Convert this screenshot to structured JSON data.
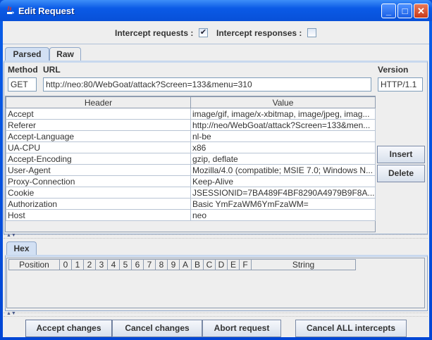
{
  "window": {
    "title": "Edit Request",
    "minimize": "_",
    "maximize": "□",
    "close": "✕"
  },
  "intercept": {
    "requests_label": "Intercept requests :",
    "requests_checked": true,
    "responses_label": "Intercept responses :",
    "responses_checked": false,
    "check_glyph": "✔"
  },
  "tabs": [
    {
      "label": "Parsed",
      "selected": true
    },
    {
      "label": "Raw",
      "selected": false
    }
  ],
  "request": {
    "method_label": "Method",
    "url_label": "URL",
    "version_label": "Version",
    "method": "GET",
    "url": "http://neo:80/WebGoat/attack?Screen=133&menu=310",
    "version": "HTTP/1.1"
  },
  "headers_table": {
    "columns": [
      "Header",
      "Value"
    ],
    "rows": [
      [
        "Accept",
        "image/gif, image/x-xbitmap, image/jpeg, imag..."
      ],
      [
        "Referer",
        "http://neo/WebGoat/attack?Screen=133&men..."
      ],
      [
        "Accept-Language",
        "nl-be"
      ],
      [
        "UA-CPU",
        "x86"
      ],
      [
        "Accept-Encoding",
        "gzip, deflate"
      ],
      [
        "User-Agent",
        "Mozilla/4.0 (compatible; MSIE 7.0; Windows N..."
      ],
      [
        "Proxy-Connection",
        "Keep-Alive"
      ],
      [
        "Cookie",
        "JSESSIONID=7BA489F4BF8290A4979B9F8A..."
      ],
      [
        "Authorization",
        "Basic YmFzaWM6YmFzaWM="
      ],
      [
        "Host",
        "neo"
      ]
    ]
  },
  "side_buttons": {
    "insert": "Insert",
    "delete": "Delete"
  },
  "hex": {
    "tab": "Hex",
    "columns": [
      "Position",
      "0",
      "1",
      "2",
      "3",
      "4",
      "5",
      "6",
      "7",
      "8",
      "9",
      "A",
      "B",
      "C",
      "D",
      "E",
      "F",
      "String"
    ]
  },
  "footer": {
    "accept": "Accept changes",
    "cancel": "Cancel changes",
    "abort": "Abort request",
    "cancel_all": "Cancel ALL intercepts"
  }
}
